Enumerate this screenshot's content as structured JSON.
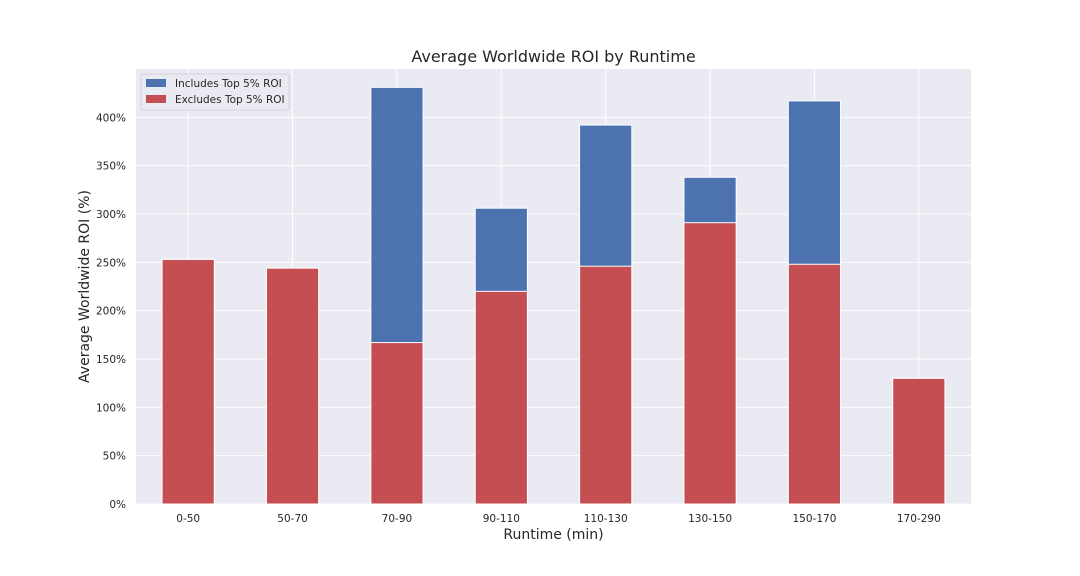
{
  "chart_data": {
    "type": "bar",
    "stacked": false,
    "overlay": true,
    "title": "Average Worldwide ROI by Runtime",
    "xlabel": "Runtime (min)",
    "ylabel": "Average Worldwide ROI (%)",
    "categories": [
      "0-50",
      "50-70",
      "70-90",
      "90-110",
      "110-130",
      "130-150",
      "150-170",
      "170-290"
    ],
    "ylim": [
      0,
      450
    ],
    "yticks": [
      0,
      50,
      100,
      150,
      200,
      250,
      300,
      350,
      400
    ],
    "ytick_labels": [
      "0%",
      "50%",
      "100%",
      "150%",
      "200%",
      "250%",
      "300%",
      "350%",
      "400%"
    ],
    "grid": true,
    "legend_position": "top-left",
    "series": [
      {
        "name": "Includes Top 5% ROI",
        "color": "#4c72b0",
        "values": [
          253,
          244,
          431,
          306,
          392,
          338,
          417,
          130
        ]
      },
      {
        "name": "Excludes Top 5% ROI",
        "color": "#c44e52",
        "values": [
          253,
          244,
          167,
          220,
          246,
          291,
          248,
          130
        ]
      }
    ]
  }
}
